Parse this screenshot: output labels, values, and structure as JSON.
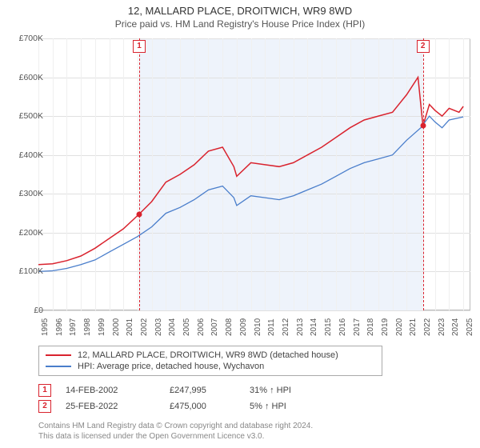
{
  "title": "12, MALLARD PLACE, DROITWICH, WR9 8WD",
  "subtitle": "Price paid vs. HM Land Registry's House Price Index (HPI)",
  "chart": {
    "type": "line",
    "x_range": [
      1995,
      2025.5
    ],
    "y_range": [
      0,
      700000
    ],
    "y_ticks": [
      0,
      100000,
      200000,
      300000,
      400000,
      500000,
      600000,
      700000
    ],
    "y_tick_labels": [
      "£0",
      "£100K",
      "£200K",
      "£300K",
      "£400K",
      "£500K",
      "£600K",
      "£700K"
    ],
    "x_ticks": [
      1995,
      1996,
      1997,
      1998,
      1999,
      2000,
      2001,
      2002,
      2003,
      2004,
      2005,
      2006,
      2007,
      2008,
      2009,
      2010,
      2011,
      2012,
      2013,
      2014,
      2015,
      2016,
      2017,
      2018,
      2019,
      2020,
      2021,
      2022,
      2023,
      2024,
      2025
    ],
    "background_color": "#ffffff",
    "grid_color": "#e0e0e0",
    "border_color": "#bbbbbb",
    "shaded_band": {
      "x_from": 2002.12,
      "x_to": 2022.15,
      "fill": "#eef3fb"
    },
    "series": [
      {
        "key": "price_paid",
        "label": "12, MALLARD PLACE, DROITWICH, WR9 8WD (detached house)",
        "color": "#d9232e",
        "line_width": 1.5,
        "data": [
          [
            1995,
            118000
          ],
          [
            1996,
            120000
          ],
          [
            1997,
            128000
          ],
          [
            1998,
            140000
          ],
          [
            1999,
            160000
          ],
          [
            2000,
            185000
          ],
          [
            2001,
            210000
          ],
          [
            2002.12,
            247995
          ],
          [
            2003,
            280000
          ],
          [
            2004,
            330000
          ],
          [
            2005,
            350000
          ],
          [
            2006,
            375000
          ],
          [
            2007,
            410000
          ],
          [
            2008,
            420000
          ],
          [
            2008.8,
            370000
          ],
          [
            2009,
            345000
          ],
          [
            2010,
            380000
          ],
          [
            2011,
            375000
          ],
          [
            2012,
            370000
          ],
          [
            2013,
            380000
          ],
          [
            2014,
            400000
          ],
          [
            2015,
            420000
          ],
          [
            2016,
            445000
          ],
          [
            2017,
            470000
          ],
          [
            2018,
            490000
          ],
          [
            2019,
            500000
          ],
          [
            2020,
            510000
          ],
          [
            2021,
            555000
          ],
          [
            2021.8,
            600000
          ],
          [
            2022.15,
            475000
          ],
          [
            2022.6,
            530000
          ],
          [
            2023,
            515000
          ],
          [
            2023.5,
            500000
          ],
          [
            2024,
            520000
          ],
          [
            2024.7,
            510000
          ],
          [
            2025,
            525000
          ]
        ]
      },
      {
        "key": "hpi",
        "label": "HPI: Average price, detached house, Wychavon",
        "color": "#4a7ecb",
        "line_width": 1.3,
        "data": [
          [
            1995,
            100000
          ],
          [
            1996,
            102000
          ],
          [
            1997,
            108000
          ],
          [
            1998,
            118000
          ],
          [
            1999,
            130000
          ],
          [
            2000,
            150000
          ],
          [
            2001,
            170000
          ],
          [
            2002,
            190000
          ],
          [
            2003,
            215000
          ],
          [
            2004,
            250000
          ],
          [
            2005,
            265000
          ],
          [
            2006,
            285000
          ],
          [
            2007,
            310000
          ],
          [
            2008,
            320000
          ],
          [
            2008.8,
            290000
          ],
          [
            2009,
            270000
          ],
          [
            2010,
            295000
          ],
          [
            2011,
            290000
          ],
          [
            2012,
            285000
          ],
          [
            2013,
            295000
          ],
          [
            2014,
            310000
          ],
          [
            2015,
            325000
          ],
          [
            2016,
            345000
          ],
          [
            2017,
            365000
          ],
          [
            2018,
            380000
          ],
          [
            2019,
            390000
          ],
          [
            2020,
            400000
          ],
          [
            2021,
            438000
          ],
          [
            2022,
            470000
          ],
          [
            2022.6,
            500000
          ],
          [
            2023,
            485000
          ],
          [
            2023.5,
            470000
          ],
          [
            2024,
            490000
          ],
          [
            2025,
            498000
          ]
        ]
      }
    ],
    "sale_markers": [
      {
        "n": "1",
        "x": 2002.12,
        "y": 247995,
        "color": "#d9232e"
      },
      {
        "n": "2",
        "x": 2022.15,
        "y": 475000,
        "color": "#d9232e"
      }
    ]
  },
  "legend": {
    "items": [
      {
        "color": "#d9232e",
        "label": "12, MALLARD PLACE, DROITWICH, WR9 8WD (detached house)"
      },
      {
        "color": "#4a7ecb",
        "label": "HPI: Average price, detached house, Wychavon"
      }
    ]
  },
  "sales": [
    {
      "n": "1",
      "color": "#d9232e",
      "date": "14-FEB-2002",
      "price": "£247,995",
      "hpi": "31% ↑ HPI"
    },
    {
      "n": "2",
      "color": "#d9232e",
      "date": "25-FEB-2022",
      "price": "£475,000",
      "hpi": "5% ↑ HPI"
    }
  ],
  "footer_line1": "Contains HM Land Registry data © Crown copyright and database right 2024.",
  "footer_line2": "This data is licensed under the Open Government Licence v3.0.",
  "label_fontsize": 11,
  "title_fontsize": 13
}
